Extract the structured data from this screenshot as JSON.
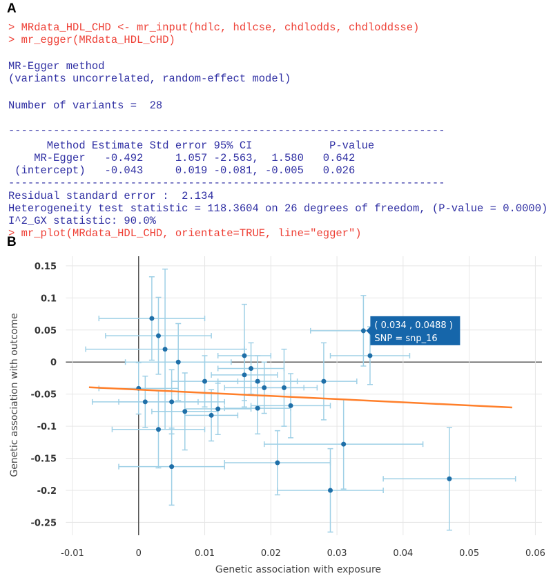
{
  "panels": [
    "A",
    "B"
  ],
  "console": {
    "colors": {
      "input": "#ee4036",
      "output": "#2f2fa3"
    },
    "lines": [
      {
        "text": "> MRdata_HDL_CHD <- mr_input(hdlc, hdlcse, chdlodds, chdloddsse)",
        "kind": "input"
      },
      {
        "text": "> mr_egger(MRdata_HDL_CHD)",
        "kind": "input"
      },
      {
        "text": "MR-Egger method",
        "kind": "output"
      },
      {
        "text": "(variants uncorrelated, random-effect model)",
        "kind": "output"
      },
      {
        "text": "Number of variants =  28",
        "kind": "output"
      },
      {
        "text": "--------------------------------------------------------------------",
        "kind": "output"
      },
      {
        "text": "      Method Estimate Std error 95% CI            P-value",
        "kind": "output"
      },
      {
        "text": "    MR-Egger   -0.492     1.057 -2.563,  1.580   0.642",
        "kind": "output"
      },
      {
        "text": " (intercept)   -0.043     0.019 -0.081, -0.005   0.026",
        "kind": "output"
      },
      {
        "text": "--------------------------------------------------------------------",
        "kind": "output"
      },
      {
        "text": "Residual standard error :  2.134",
        "kind": "output"
      },
      {
        "text": "Heterogeneity test statistic = 118.3604 on 26 degrees of freedom, (P-value = 0.0000)",
        "kind": "output"
      },
      {
        "text": "I^2_GX statistic: 90.0%",
        "kind": "output"
      },
      {
        "text": "> mr_plot(MRdata_HDL_CHD, orientate=TRUE, line=\"egger\")",
        "kind": "input"
      }
    ]
  },
  "chart_data": {
    "type": "scatter",
    "xlabel": "Genetic association with exposure",
    "ylabel": "Genetic association with outcome",
    "xlim": [
      -0.011,
      0.061
    ],
    "ylim": [
      -0.27,
      0.165
    ],
    "xticks": [
      -0.01,
      0,
      0.01,
      0.02,
      0.03,
      0.04,
      0.05,
      0.06
    ],
    "yticks": [
      0.15,
      0.1,
      0.05,
      0,
      -0.05,
      -0.1,
      -0.15,
      -0.2,
      -0.25
    ],
    "grid": true,
    "series": [
      {
        "color": "#1f6fa8",
        "error_color": "#9fd0e6",
        "x": [
          0.002,
          0.003,
          0.004,
          0.006,
          0.0,
          0.001,
          0.005,
          0.007,
          0.003,
          0.005,
          0.01,
          0.011,
          0.012,
          0.016,
          0.016,
          0.017,
          0.018,
          0.018,
          0.019,
          0.022,
          0.023,
          0.028,
          0.021,
          0.029,
          0.031,
          0.034,
          0.035,
          0.047
        ],
        "values": [
          0.068,
          0.041,
          0.02,
          0.0,
          -0.041,
          -0.062,
          -0.062,
          -0.077,
          -0.105,
          -0.163,
          -0.03,
          -0.083,
          -0.073,
          0.01,
          -0.02,
          -0.01,
          -0.03,
          -0.072,
          -0.04,
          -0.04,
          -0.068,
          -0.03,
          -0.157,
          -0.2,
          -0.128,
          0.0488,
          0.01,
          -0.182
        ],
        "x_err": [
          0.008,
          0.008,
          0.012,
          0.008,
          0.006,
          0.008,
          0.008,
          0.005,
          0.007,
          0.008,
          0.005,
          0.004,
          0.005,
          0.004,
          0.005,
          0.005,
          0.006,
          0.005,
          0.006,
          0.005,
          0.006,
          0.005,
          0.008,
          0.008,
          0.012,
          0.008,
          0.006,
          0.01
        ],
        "y_err": [
          0.065,
          0.06,
          0.125,
          0.06,
          0.04,
          0.04,
          0.05,
          0.06,
          0.06,
          0.06,
          0.04,
          0.04,
          0.04,
          0.08,
          0.04,
          0.04,
          0.04,
          0.04,
          0.04,
          0.06,
          0.05,
          0.06,
          0.05,
          0.065,
          0.07,
          0.055,
          0.045,
          0.08
        ]
      }
    ],
    "fit_line": {
      "color": "#ff7f2a",
      "x": [
        -0.0075,
        0.0565
      ],
      "y": [
        -0.0393,
        -0.0708
      ]
    },
    "tooltip": {
      "x": 0.034,
      "y": 0.0488,
      "color": "#1666aa",
      "lines": [
        "( 0.034 , 0.0488 )",
        "SNP =  snp_16"
      ]
    }
  }
}
